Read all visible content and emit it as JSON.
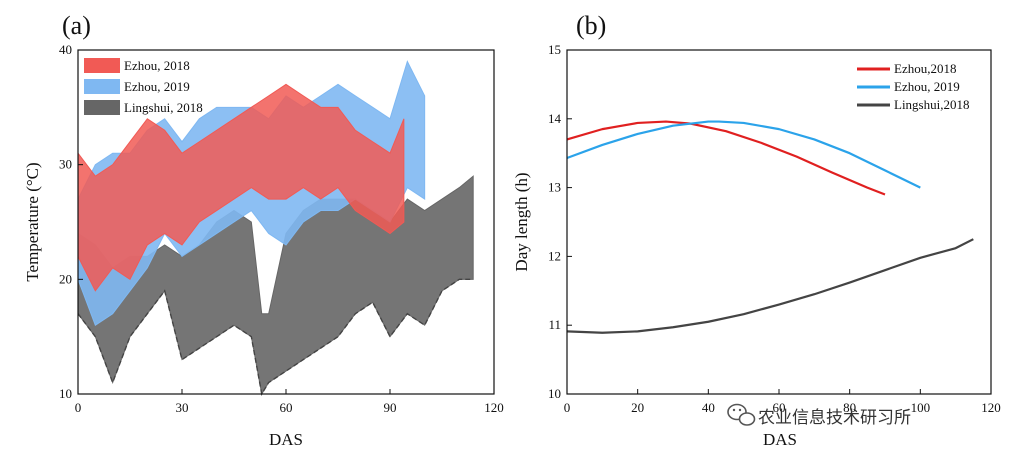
{
  "watermark": {
    "text": "农业信息技术研习所",
    "icon": "wechat-icon"
  },
  "chart_data": [
    {
      "type": "area",
      "panel_label": "(a)",
      "xlabel": "DAS",
      "ylabel": "Temperature (°C)",
      "xlim": [
        0,
        120
      ],
      "ylim": [
        10,
        40
      ],
      "xticks": [
        "0",
        "30",
        "60",
        "90",
        "120"
      ],
      "yticks": [
        "10",
        "20",
        "30",
        "40"
      ],
      "xtick_values": [
        0,
        30,
        60,
        90,
        120
      ],
      "ytick_values": [
        10,
        20,
        30,
        40
      ],
      "legend_position": "top-left",
      "grid": false,
      "series": [
        {
          "name": "Ezhou, 2019",
          "color": "#7fb8f2",
          "x": [
            0,
            5,
            10,
            15,
            20,
            25,
            30,
            35,
            40,
            45,
            50,
            55,
            60,
            65,
            70,
            75,
            80,
            85,
            90,
            95,
            100
          ],
          "min": [
            20,
            16,
            17,
            19,
            21,
            24,
            22,
            23,
            24,
            25,
            26,
            24,
            23,
            25,
            26,
            26,
            27,
            26,
            25,
            28,
            27
          ],
          "max": [
            27,
            30,
            31,
            31,
            33,
            34,
            32,
            34,
            35,
            35,
            35,
            34,
            36,
            35,
            36,
            37,
            36,
            35,
            34,
            39,
            36
          ]
        },
        {
          "name": "Ezhou, 2018",
          "color": "#f15a55",
          "x": [
            0,
            5,
            10,
            15,
            20,
            25,
            30,
            35,
            40,
            45,
            50,
            55,
            60,
            65,
            70,
            75,
            80,
            85,
            90,
            94
          ],
          "min": [
            22,
            19,
            21,
            20,
            23,
            24,
            23,
            25,
            26,
            27,
            28,
            27,
            27,
            28,
            27,
            28,
            26,
            25,
            24,
            25
          ],
          "max": [
            31,
            29,
            30,
            32,
            34,
            33,
            31,
            32,
            33,
            34,
            35,
            36,
            37,
            36,
            35,
            35,
            33,
            32,
            31,
            34
          ]
        },
        {
          "name": "Lingshui, 2018",
          "color": "#666666",
          "x": [
            0,
            5,
            10,
            15,
            20,
            25,
            30,
            35,
            40,
            45,
            50,
            53,
            55,
            60,
            65,
            70,
            75,
            80,
            85,
            90,
            95,
            100,
            105,
            110,
            114
          ],
          "min": [
            17,
            15,
            11,
            15,
            17,
            19,
            13,
            14,
            15,
            16,
            15,
            10,
            11,
            12,
            13,
            14,
            15,
            17,
            18,
            15,
            17,
            16,
            19,
            20,
            20
          ],
          "max": [
            24,
            23,
            21,
            22,
            22,
            23,
            22,
            23,
            25,
            26,
            25,
            17,
            17,
            24,
            26,
            27,
            27,
            27,
            26,
            25,
            27,
            26,
            27,
            28,
            29
          ]
        }
      ]
    },
    {
      "type": "line",
      "panel_label": "(b)",
      "xlabel": "DAS",
      "ylabel": "Day length (h)",
      "xlim": [
        0,
        120
      ],
      "ylim": [
        10,
        15
      ],
      "xticks": [
        "0",
        "20",
        "40",
        "60",
        "80",
        "100",
        "120"
      ],
      "yticks": [
        "10",
        "11",
        "12",
        "13",
        "14",
        "15"
      ],
      "xtick_values": [
        0,
        20,
        40,
        60,
        80,
        100,
        120
      ],
      "ytick_values": [
        10,
        11,
        12,
        13,
        14,
        15
      ],
      "legend_position": "top-right",
      "grid": false,
      "series": [
        {
          "name": "Ezhou,2018",
          "color": "#e02020",
          "x": [
            0,
            10,
            20,
            28,
            35,
            45,
            55,
            65,
            75,
            85,
            90
          ],
          "y": [
            13.7,
            13.85,
            13.94,
            13.96,
            13.93,
            13.82,
            13.65,
            13.45,
            13.22,
            13.0,
            12.9
          ]
        },
        {
          "name": "Ezhou, 2019",
          "color": "#2ba3ea",
          "x": [
            0,
            10,
            20,
            30,
            40,
            43,
            50,
            60,
            70,
            80,
            90,
            100
          ],
          "y": [
            13.43,
            13.62,
            13.78,
            13.9,
            13.96,
            13.96,
            13.94,
            13.85,
            13.7,
            13.5,
            13.25,
            13.0
          ]
        },
        {
          "name": "Lingshui,2018",
          "color": "#444444",
          "x": [
            0,
            10,
            20,
            30,
            40,
            50,
            60,
            70,
            80,
            90,
            100,
            110,
            115
          ],
          "y": [
            10.91,
            10.89,
            10.91,
            10.97,
            11.05,
            11.16,
            11.3,
            11.45,
            11.62,
            11.8,
            11.98,
            12.12,
            12.25
          ]
        }
      ]
    }
  ]
}
